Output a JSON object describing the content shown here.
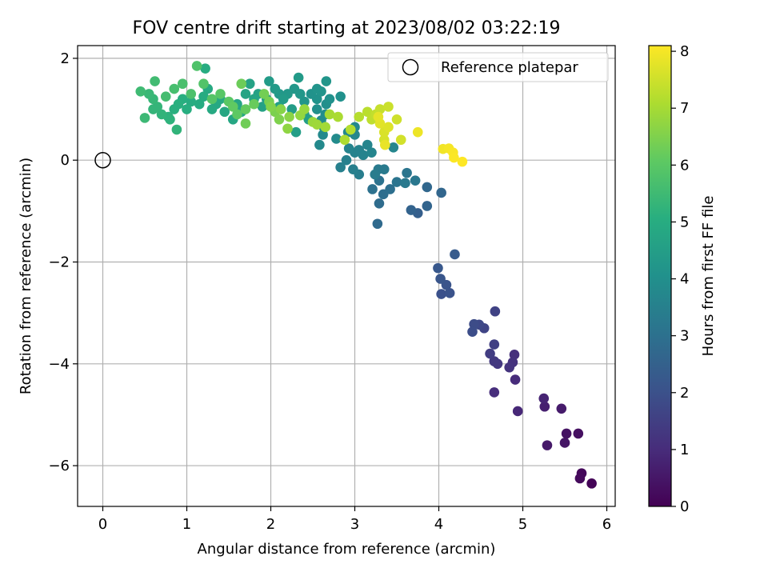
{
  "chart_data": {
    "type": "scatter",
    "title": "FOV centre drift starting at 2023/08/02 03:22:19",
    "xlabel": "Angular distance from reference (arcmin)",
    "ylabel": "Rotation from reference (arcmin)",
    "xlim": [
      -0.3,
      6.1
    ],
    "ylim": [
      -6.8,
      2.25
    ],
    "xticks": [
      {
        "v": 0,
        "label": "0"
      },
      {
        "v": 1,
        "label": "1"
      },
      {
        "v": 2,
        "label": "2"
      },
      {
        "v": 3,
        "label": "3"
      },
      {
        "v": 4,
        "label": "4"
      },
      {
        "v": 5,
        "label": "5"
      },
      {
        "v": 6,
        "label": "6"
      }
    ],
    "yticks": [
      {
        "v": 2,
        "label": "2"
      },
      {
        "v": 0,
        "label": "0"
      },
      {
        "v": -2,
        "label": "−2"
      },
      {
        "v": -4,
        "label": "−4"
      },
      {
        "v": -6,
        "label": "−6"
      }
    ],
    "grid": true,
    "legend": {
      "position": "top-right",
      "entries": [
        "Reference platepar"
      ]
    },
    "colorbar": {
      "label": "Hours from first FF file",
      "colormap": "viridis",
      "range": [
        0,
        8.1
      ],
      "ticks": [
        {
          "v": 0,
          "label": "0"
        },
        {
          "v": 1,
          "label": "1"
        },
        {
          "v": 2,
          "label": "2"
        },
        {
          "v": 3,
          "label": "3"
        },
        {
          "v": 4,
          "label": "4"
        },
        {
          "v": 5,
          "label": "5"
        },
        {
          "v": 6,
          "label": "6"
        },
        {
          "v": 7,
          "label": "7"
        },
        {
          "v": 8,
          "label": "8"
        }
      ]
    },
    "reference_point": {
      "x": 0,
      "y": 0
    },
    "series": [
      {
        "columns": [
          "x",
          "y",
          "hours"
        ],
        "points": [
          [
            5.82,
            -6.35,
            0.08
          ],
          [
            5.7,
            -6.15,
            0.15
          ],
          [
            5.68,
            -6.25,
            0.2
          ],
          [
            5.66,
            -5.37,
            0.35
          ],
          [
            5.52,
            -5.37,
            0.4
          ],
          [
            5.5,
            -5.55,
            0.45
          ],
          [
            5.29,
            -5.6,
            0.55
          ],
          [
            5.46,
            -4.88,
            0.6
          ],
          [
            5.26,
            -4.84,
            0.7
          ],
          [
            5.25,
            -4.68,
            0.8
          ],
          [
            4.94,
            -4.93,
            0.9
          ],
          [
            4.91,
            -4.31,
            1.0
          ],
          [
            4.66,
            -4.56,
            1.05
          ],
          [
            4.9,
            -3.82,
            1.1
          ],
          [
            4.88,
            -3.97,
            1.15
          ],
          [
            4.84,
            -4.07,
            1.2
          ],
          [
            4.7,
            -4.0,
            1.3
          ],
          [
            4.66,
            -3.95,
            1.35
          ],
          [
            4.61,
            -3.8,
            1.45
          ],
          [
            4.66,
            -3.62,
            1.5
          ],
          [
            4.67,
            -2.97,
            1.6
          ],
          [
            4.54,
            -3.3,
            1.65
          ],
          [
            4.48,
            -3.23,
            1.75
          ],
          [
            4.42,
            -3.22,
            1.85
          ],
          [
            4.4,
            -3.37,
            1.9
          ],
          [
            4.03,
            -2.63,
            2.0
          ],
          [
            4.13,
            -2.61,
            2.05
          ],
          [
            4.09,
            -2.45,
            2.1
          ],
          [
            4.02,
            -2.33,
            2.15
          ],
          [
            3.99,
            -2.12,
            2.2
          ],
          [
            4.19,
            -1.85,
            2.3
          ],
          [
            3.75,
            -1.04,
            2.45
          ],
          [
            3.67,
            -0.98,
            2.55
          ],
          [
            3.86,
            -0.9,
            2.6
          ],
          [
            4.03,
            -0.64,
            2.65
          ],
          [
            3.86,
            -0.53,
            2.7
          ],
          [
            3.27,
            -1.25,
            2.8
          ],
          [
            3.29,
            -0.85,
            2.85
          ],
          [
            3.34,
            -0.67,
            2.9
          ],
          [
            3.42,
            -0.57,
            2.95
          ],
          [
            3.21,
            -0.57,
            3.0
          ],
          [
            3.29,
            -0.4,
            3.05
          ],
          [
            3.5,
            -0.43,
            3.1
          ],
          [
            3.62,
            -0.25,
            3.15
          ],
          [
            3.72,
            -0.4,
            3.2
          ],
          [
            3.6,
            -0.45,
            3.25
          ],
          [
            3.28,
            -0.18,
            3.3
          ],
          [
            3.35,
            -0.18,
            3.3
          ],
          [
            3.24,
            -0.28,
            3.35
          ],
          [
            3.05,
            -0.28,
            3.4
          ],
          [
            2.98,
            -0.18,
            3.45
          ],
          [
            2.83,
            -0.14,
            3.5
          ],
          [
            2.9,
            0.0,
            3.5
          ],
          [
            3.0,
            0.15,
            3.55
          ],
          [
            3.05,
            0.2,
            3.55
          ],
          [
            2.93,
            0.23,
            3.6
          ],
          [
            3.1,
            0.1,
            3.6
          ],
          [
            3.2,
            0.15,
            3.65
          ],
          [
            3.15,
            0.3,
            3.65
          ],
          [
            3.46,
            0.25,
            3.7
          ],
          [
            3.0,
            0.5,
            3.7
          ],
          [
            3.0,
            0.65,
            3.75
          ],
          [
            2.92,
            0.55,
            3.75
          ],
          [
            2.62,
            0.5,
            3.8
          ],
          [
            2.58,
            0.3,
            3.8
          ],
          [
            2.78,
            0.42,
            3.85
          ],
          [
            2.63,
            0.65,
            3.9
          ],
          [
            2.6,
            0.78,
            3.9
          ],
          [
            2.65,
            0.9,
            3.95
          ],
          [
            2.55,
            1.0,
            4.0
          ],
          [
            2.66,
            1.1,
            4.0
          ],
          [
            2.7,
            1.2,
            4.05
          ],
          [
            2.83,
            1.25,
            4.05
          ],
          [
            2.55,
            1.2,
            4.1
          ],
          [
            2.48,
            1.3,
            4.1
          ],
          [
            2.55,
            1.4,
            4.15
          ],
          [
            2.6,
            1.35,
            4.15
          ],
          [
            2.66,
            1.55,
            4.2
          ],
          [
            2.4,
            1.15,
            4.2
          ],
          [
            2.35,
            1.3,
            4.25
          ],
          [
            2.28,
            1.4,
            4.25
          ],
          [
            2.2,
            1.3,
            4.3
          ],
          [
            2.1,
            1.3,
            4.3
          ],
          [
            2.33,
            1.62,
            4.35
          ],
          [
            2.05,
            1.4,
            4.35
          ],
          [
            1.98,
            1.55,
            4.4
          ],
          [
            2.15,
            1.2,
            4.4
          ],
          [
            2.25,
            1.0,
            4.45
          ],
          [
            2.4,
            0.9,
            4.45
          ],
          [
            2.3,
            0.55,
            4.5
          ],
          [
            2.45,
            0.8,
            4.5
          ],
          [
            2.1,
            1.05,
            4.55
          ],
          [
            1.95,
            1.2,
            4.55
          ],
          [
            1.9,
            1.05,
            4.6
          ],
          [
            1.85,
            1.3,
            4.6
          ],
          [
            1.75,
            1.5,
            4.65
          ],
          [
            1.8,
            1.2,
            4.7
          ],
          [
            1.7,
            1.3,
            4.7
          ],
          [
            1.6,
            1.1,
            4.75
          ],
          [
            1.65,
            0.95,
            4.75
          ],
          [
            1.55,
            0.8,
            4.8
          ],
          [
            1.45,
            0.95,
            4.8
          ],
          [
            1.4,
            1.2,
            4.85
          ],
          [
            1.35,
            1.1,
            4.85
          ],
          [
            1.3,
            1.0,
            4.9
          ],
          [
            1.25,
            1.4,
            4.9
          ],
          [
            1.2,
            1.25,
            4.95
          ],
          [
            1.15,
            1.1,
            4.95
          ],
          [
            1.22,
            1.8,
            5.0
          ],
          [
            1.05,
            1.15,
            5.0
          ],
          [
            1.0,
            1.0,
            5.05
          ],
          [
            0.95,
            1.2,
            5.05
          ],
          [
            0.9,
            1.1,
            5.1
          ],
          [
            0.85,
            1.0,
            5.1
          ],
          [
            0.78,
            0.85,
            5.15
          ],
          [
            0.8,
            0.8,
            5.2
          ],
          [
            0.88,
            0.6,
            5.25
          ],
          [
            0.7,
            0.9,
            5.25
          ],
          [
            0.65,
            1.05,
            5.3
          ],
          [
            0.6,
            1.0,
            5.3
          ],
          [
            0.6,
            1.2,
            5.35
          ],
          [
            0.55,
            1.3,
            5.4
          ],
          [
            0.5,
            0.83,
            5.45
          ],
          [
            0.45,
            1.35,
            5.5
          ],
          [
            0.62,
            1.55,
            5.55
          ],
          [
            0.75,
            1.25,
            5.6
          ],
          [
            0.85,
            1.4,
            5.65
          ],
          [
            0.95,
            1.5,
            5.7
          ],
          [
            1.05,
            1.3,
            5.75
          ],
          [
            1.12,
            1.85,
            5.8
          ],
          [
            1.2,
            1.5,
            5.85
          ],
          [
            1.3,
            1.2,
            5.9
          ],
          [
            1.4,
            1.3,
            5.95
          ],
          [
            1.5,
            1.15,
            6.0
          ],
          [
            1.6,
            0.9,
            6.05
          ],
          [
            1.55,
            1.05,
            6.1
          ],
          [
            1.7,
            1.0,
            6.15
          ],
          [
            1.8,
            1.1,
            6.2
          ],
          [
            1.65,
            1.5,
            6.25
          ],
          [
            1.7,
            0.72,
            6.3
          ],
          [
            1.92,
            1.3,
            6.35
          ],
          [
            1.98,
            1.15,
            6.4
          ],
          [
            2.05,
            0.95,
            6.45
          ],
          [
            2.1,
            0.8,
            6.5
          ],
          [
            2.0,
            1.05,
            6.55
          ],
          [
            2.12,
            1.0,
            6.6
          ],
          [
            2.22,
            0.85,
            6.65
          ],
          [
            2.2,
            0.62,
            6.7
          ],
          [
            2.35,
            0.88,
            6.75
          ],
          [
            2.4,
            1.0,
            6.8
          ],
          [
            2.5,
            0.75,
            6.85
          ],
          [
            2.55,
            0.7,
            6.9
          ],
          [
            2.65,
            0.65,
            6.95
          ],
          [
            2.7,
            0.9,
            7.0
          ],
          [
            2.8,
            0.85,
            7.05
          ],
          [
            2.88,
            0.4,
            7.1
          ],
          [
            2.95,
            0.6,
            7.15
          ],
          [
            3.05,
            0.85,
            7.2
          ],
          [
            3.15,
            0.95,
            7.25
          ],
          [
            3.2,
            0.8,
            7.3
          ],
          [
            3.25,
            0.9,
            7.35
          ],
          [
            3.3,
            1.0,
            7.4
          ],
          [
            3.4,
            1.05,
            7.45
          ],
          [
            3.5,
            0.8,
            7.5
          ],
          [
            3.55,
            0.4,
            7.55
          ],
          [
            3.35,
            0.4,
            7.6
          ],
          [
            3.35,
            0.55,
            7.65
          ],
          [
            3.4,
            0.65,
            7.7
          ],
          [
            3.3,
            0.72,
            7.75
          ],
          [
            3.28,
            0.85,
            7.8
          ],
          [
            3.36,
            0.3,
            7.85
          ],
          [
            3.75,
            0.55,
            7.9
          ],
          [
            4.05,
            0.22,
            7.95
          ],
          [
            4.12,
            0.23,
            8.0
          ],
          [
            4.17,
            0.15,
            8.05
          ],
          [
            4.18,
            0.05,
            8.08
          ],
          [
            4.28,
            -0.03,
            8.1
          ]
        ]
      }
    ]
  }
}
